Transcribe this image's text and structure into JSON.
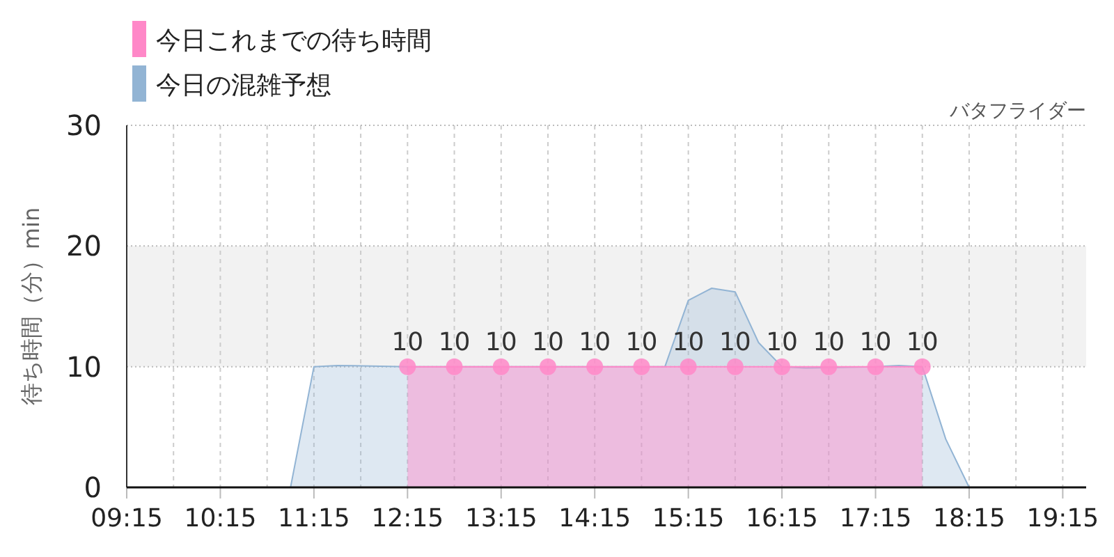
{
  "chart_data": {
    "type": "area",
    "subtitle": "バタフライダー",
    "ylabel": "待ち時間（分）min",
    "series": [
      {
        "name": "今日の混雑予想",
        "color": "#92b4d4",
        "marker": "none",
        "x": [
          9.25,
          10.75,
          11.0,
          11.25,
          11.5,
          12.25,
          14.75,
          15.0,
          15.25,
          15.5,
          15.75,
          16.0,
          16.25,
          16.5,
          17.25,
          17.5,
          17.75,
          18.0,
          18.25,
          19.5
        ],
        "values": [
          0,
          0,
          0,
          10,
          10.1,
          10,
          10,
          10,
          15.5,
          16.5,
          16.2,
          12,
          10,
          9.9,
          10,
          10.1,
          10,
          4,
          0,
          0
        ]
      },
      {
        "name": "今日これまでの待ち時間",
        "color": "#ff88c8",
        "marker": "circle",
        "x": [
          12.25,
          12.75,
          13.25,
          13.75,
          14.25,
          14.75,
          15.25,
          15.75,
          16.25,
          16.75,
          17.25,
          17.75
        ],
        "values": [
          10,
          10,
          10,
          10,
          10,
          10,
          10,
          10,
          10,
          10,
          10,
          10
        ],
        "value_labels": [
          "10",
          "10",
          "10",
          "10",
          "10",
          "10",
          "10",
          "10",
          "10",
          "10",
          "10",
          "10"
        ]
      }
    ],
    "xlim": [
      9.25,
      19.5
    ],
    "xticks": [
      {
        "value": 9.25,
        "label": "09:15"
      },
      {
        "value": 9.75,
        "label": null
      },
      {
        "value": 10.25,
        "label": "10:15"
      },
      {
        "value": 10.75,
        "label": null
      },
      {
        "value": 11.25,
        "label": "11:15"
      },
      {
        "value": 11.75,
        "label": null
      },
      {
        "value": 12.25,
        "label": "12:15"
      },
      {
        "value": 12.75,
        "label": null
      },
      {
        "value": 13.25,
        "label": "13:15"
      },
      {
        "value": 13.75,
        "label": null
      },
      {
        "value": 14.25,
        "label": "14:15"
      },
      {
        "value": 14.75,
        "label": null
      },
      {
        "value": 15.25,
        "label": "15:15"
      },
      {
        "value": 15.75,
        "label": null
      },
      {
        "value": 16.25,
        "label": "16:15"
      },
      {
        "value": 16.75,
        "label": null
      },
      {
        "value": 17.25,
        "label": "17:15"
      },
      {
        "value": 17.75,
        "label": null
      },
      {
        "value": 18.25,
        "label": "18:15"
      },
      {
        "value": 18.75,
        "label": null
      },
      {
        "value": 19.25,
        "label": "19:15"
      }
    ],
    "ylim": [
      0,
      30
    ],
    "yticks": [
      0,
      10,
      20,
      30
    ],
    "bands": [
      {
        "axis": "y",
        "from": 10,
        "to": 20,
        "color": "#f2f2f2"
      }
    ],
    "grid": true,
    "legend": "top left"
  }
}
